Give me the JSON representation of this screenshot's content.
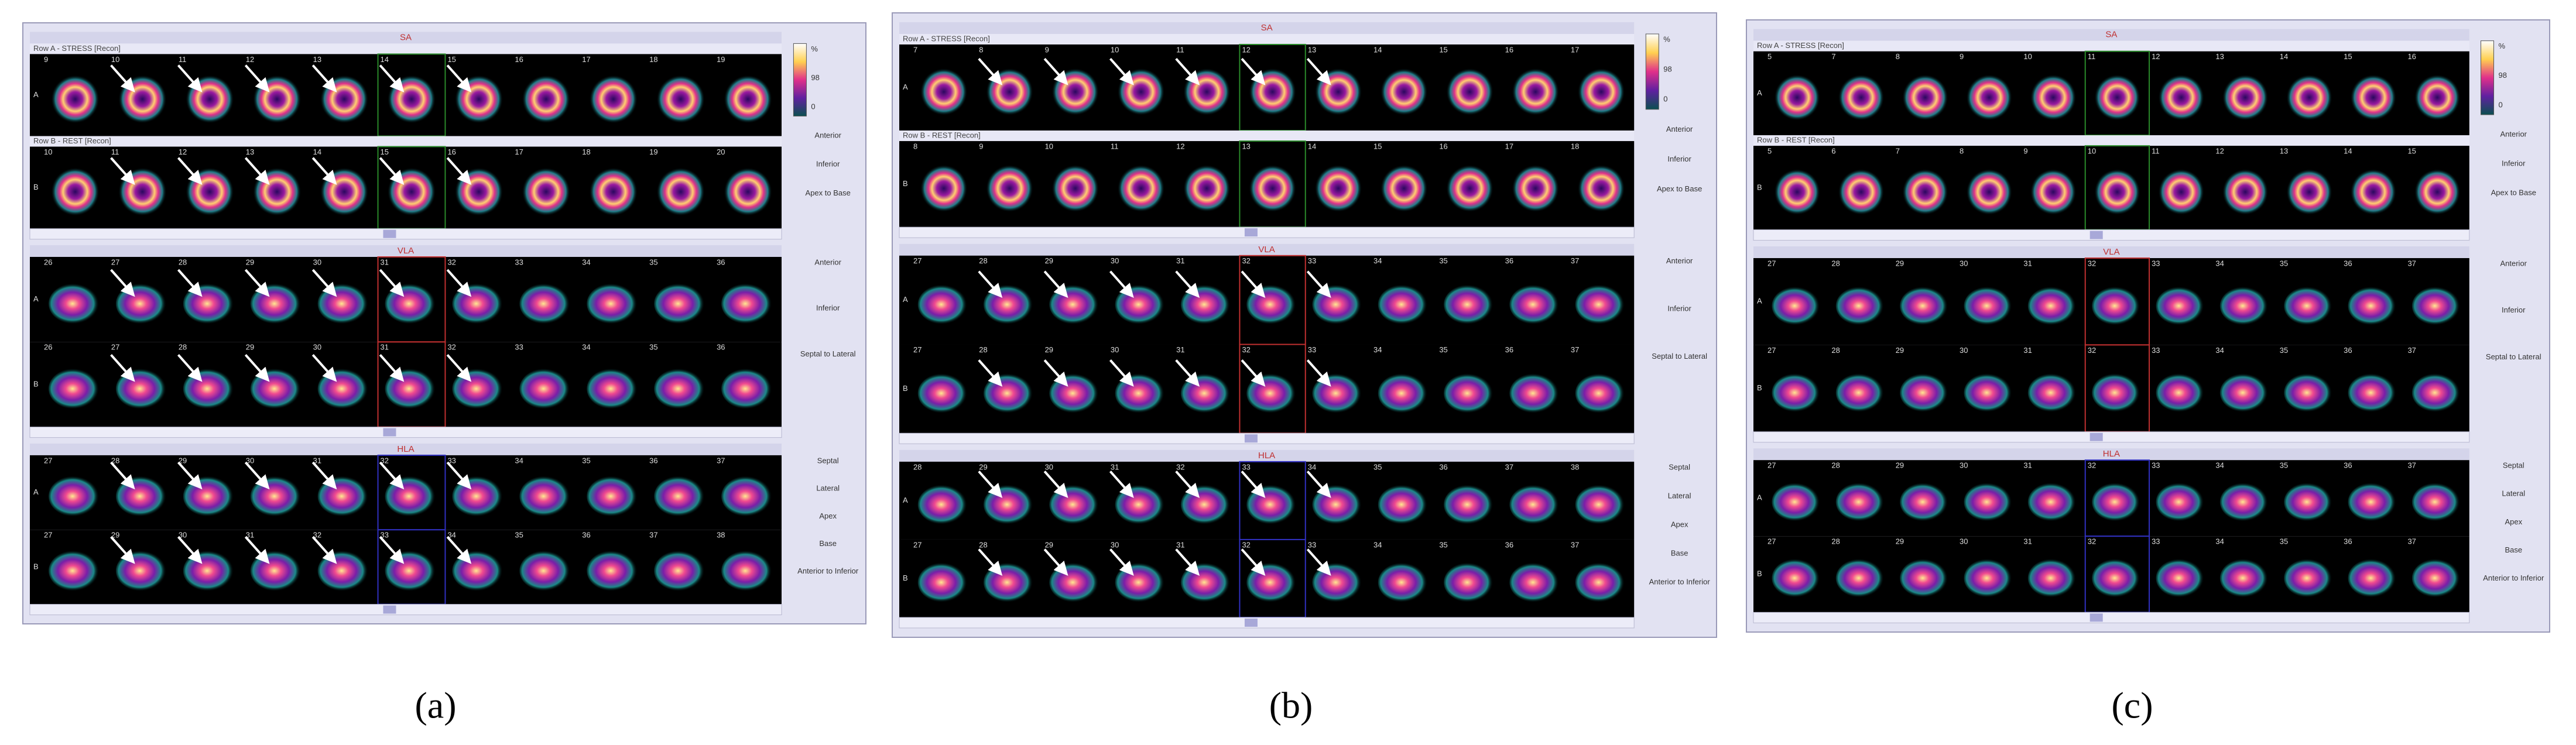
{
  "panels": [
    {
      "caption": "(a)",
      "sections": [
        {
          "title": "SA",
          "rows": [
            {
              "header": "Row A - STRESS [Recon]",
              "label": "A",
              "frames": [
                "9",
                "10",
                "11",
                "12",
                "13",
                "14",
                "15",
                "16",
                "17",
                "18",
                "19"
              ]
            },
            {
              "header": "Row B - REST [Recon]",
              "label": "B",
              "frames": [
                "10",
                "11",
                "12",
                "13",
                "14",
                "15",
                "16",
                "17",
                "18",
                "19",
                "20"
              ]
            }
          ],
          "side": [
            "%",
            "98",
            "0",
            "Anterior",
            "Inferior",
            "Apex to Base"
          ]
        },
        {
          "title": "VLA",
          "rows": [
            {
              "label": "A",
              "frames": [
                "26",
                "27",
                "28",
                "29",
                "30",
                "31",
                "32",
                "33",
                "34",
                "35",
                "36"
              ]
            },
            {
              "label": "B",
              "frames": [
                "26",
                "27",
                "28",
                "29",
                "30",
                "31",
                "32",
                "33",
                "34",
                "35",
                "36"
              ]
            }
          ],
          "side": [
            "Anterior",
            "Inferior",
            "Septal to Lateral"
          ]
        },
        {
          "title": "HLA",
          "rows": [
            {
              "label": "A",
              "frames": [
                "27",
                "28",
                "29",
                "30",
                "31",
                "32",
                "33",
                "34",
                "35",
                "36",
                "37"
              ]
            },
            {
              "label": "B",
              "frames": [
                "27",
                "29",
                "30",
                "31",
                "32",
                "33",
                "34",
                "35",
                "36",
                "37",
                "38"
              ]
            }
          ],
          "side": [
            "Septal",
            "Lateral",
            "Apex",
            "Base",
            "Anterior to Inferior"
          ]
        }
      ]
    },
    {
      "caption": "(b)",
      "sections": [
        {
          "title": "SA",
          "rows": [
            {
              "header": "Row A - STRESS [Recon]",
              "label": "A",
              "frames": [
                "7",
                "8",
                "9",
                "10",
                "11",
                "12",
                "13",
                "14",
                "15",
                "16",
                "17"
              ]
            },
            {
              "header": "Row B - REST [Recon]",
              "label": "B",
              "frames": [
                "8",
                "9",
                "10",
                "11",
                "12",
                "13",
                "14",
                "15",
                "16",
                "17",
                "18"
              ]
            }
          ],
          "side": [
            "%",
            "98",
            "0",
            "Anterior",
            "Inferior",
            "Apex to Base"
          ]
        },
        {
          "title": "VLA",
          "rows": [
            {
              "label": "A",
              "frames": [
                "27",
                "28",
                "29",
                "30",
                "31",
                "32",
                "33",
                "34",
                "35",
                "36",
                "37"
              ]
            },
            {
              "label": "B",
              "frames": [
                "27",
                "28",
                "29",
                "30",
                "31",
                "32",
                "33",
                "34",
                "35",
                "36",
                "37"
              ]
            }
          ],
          "side": [
            "Anterior",
            "Inferior",
            "Septal to Lateral"
          ]
        },
        {
          "title": "HLA",
          "rows": [
            {
              "label": "A",
              "frames": [
                "28",
                "29",
                "30",
                "31",
                "32",
                "33",
                "34",
                "35",
                "36",
                "37",
                "38"
              ]
            },
            {
              "label": "B",
              "frames": [
                "27",
                "28",
                "29",
                "30",
                "31",
                "32",
                "33",
                "34",
                "35",
                "36",
                "37"
              ]
            }
          ],
          "side": [
            "Septal",
            "Lateral",
            "Apex",
            "Base",
            "Anterior to Inferior"
          ]
        }
      ]
    },
    {
      "caption": "(c)",
      "sections": [
        {
          "title": "SA",
          "rows": [
            {
              "header": "Row A - STRESS [Recon]",
              "label": "A",
              "frames": [
                "5",
                "7",
                "8",
                "9",
                "10",
                "11",
                "12",
                "13",
                "14",
                "15",
                "16"
              ]
            },
            {
              "header": "Row B - REST [Recon]",
              "label": "B",
              "frames": [
                "5",
                "6",
                "7",
                "8",
                "9",
                "10",
                "11",
                "12",
                "13",
                "14",
                "15"
              ]
            }
          ],
          "side": [
            "%",
            "98",
            "0",
            "Anterior",
            "Inferior",
            "Apex to Base"
          ]
        },
        {
          "title": "VLA",
          "rows": [
            {
              "label": "A",
              "frames": [
                "27",
                "28",
                "29",
                "30",
                "31",
                "32",
                "33",
                "34",
                "35",
                "36",
                "37"
              ]
            },
            {
              "label": "B",
              "frames": [
                "27",
                "28",
                "29",
                "30",
                "31",
                "32",
                "33",
                "34",
                "35",
                "36",
                "37"
              ]
            }
          ],
          "side": [
            "Anterior",
            "Inferior",
            "Septal to Lateral"
          ]
        },
        {
          "title": "HLA",
          "rows": [
            {
              "label": "A",
              "frames": [
                "27",
                "28",
                "29",
                "30",
                "31",
                "32",
                "33",
                "34",
                "35",
                "36",
                "37"
              ]
            },
            {
              "label": "B",
              "frames": [
                "27",
                "28",
                "29",
                "30",
                "31",
                "32",
                "33",
                "34",
                "35",
                "36",
                "37"
              ]
            }
          ],
          "side": [
            "Septal",
            "Lateral",
            "Apex",
            "Base",
            "Anterior to Inferior"
          ]
        }
      ]
    }
  ]
}
